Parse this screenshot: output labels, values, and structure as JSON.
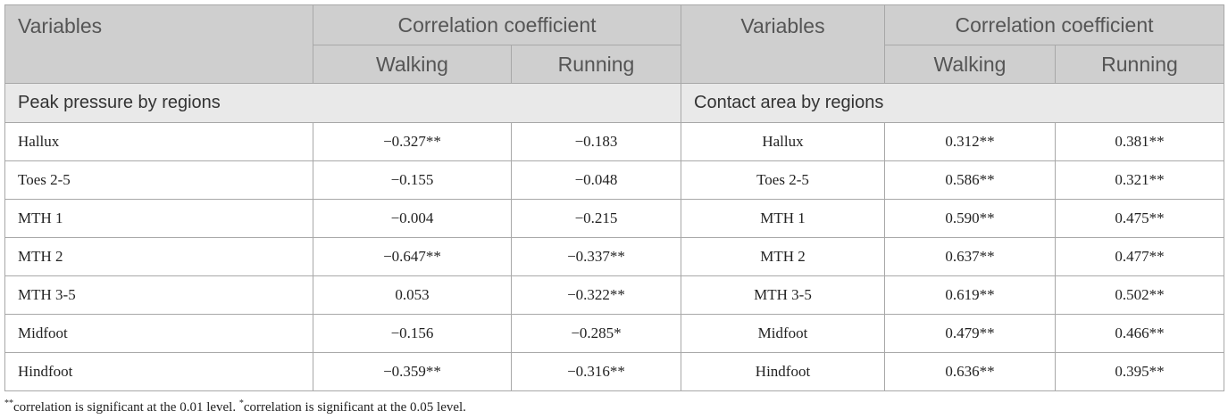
{
  "header": {
    "left": {
      "variables": "Variables",
      "group": "Correlation coefficient",
      "walking": "Walking",
      "running": "Running"
    },
    "right": {
      "variables": "Variables",
      "group": "Correlation coefficient",
      "walking": "Walking",
      "running": "Running"
    }
  },
  "sections": {
    "left": "Peak pressure by regions",
    "right": "Contact area by regions"
  },
  "table": {
    "rows": [
      [
        "Hallux",
        "−0.327**",
        "−0.183",
        "Hallux",
        "0.312**",
        "0.381**"
      ],
      [
        "Toes 2-5",
        "−0.155",
        "−0.048",
        "Toes 2-5",
        "0.586**",
        "0.321**"
      ],
      [
        "MTH 1",
        "−0.004",
        "−0.215",
        "MTH 1",
        "0.590**",
        "0.475**"
      ],
      [
        "MTH 2",
        "−0.647**",
        "−0.337**",
        "MTH 2",
        "0.637**",
        "0.477**"
      ],
      [
        "MTH 3-5",
        "0.053",
        "−0.322**",
        "MTH 3-5",
        "0.619**",
        "0.502**"
      ],
      [
        "Midfoot",
        "−0.156",
        "−0.285*",
        "Midfoot",
        "0.479**",
        "0.466**"
      ],
      [
        "Hindfoot",
        "−0.359**",
        "−0.316**",
        "Hindfoot",
        "0.636**",
        "0.395**"
      ]
    ]
  },
  "footnote": {
    "mark1": "**",
    "text1": "correlation is significant at the 0.01 level. ",
    "mark2": "*",
    "text2": "correlation is significant at the 0.05 level."
  }
}
